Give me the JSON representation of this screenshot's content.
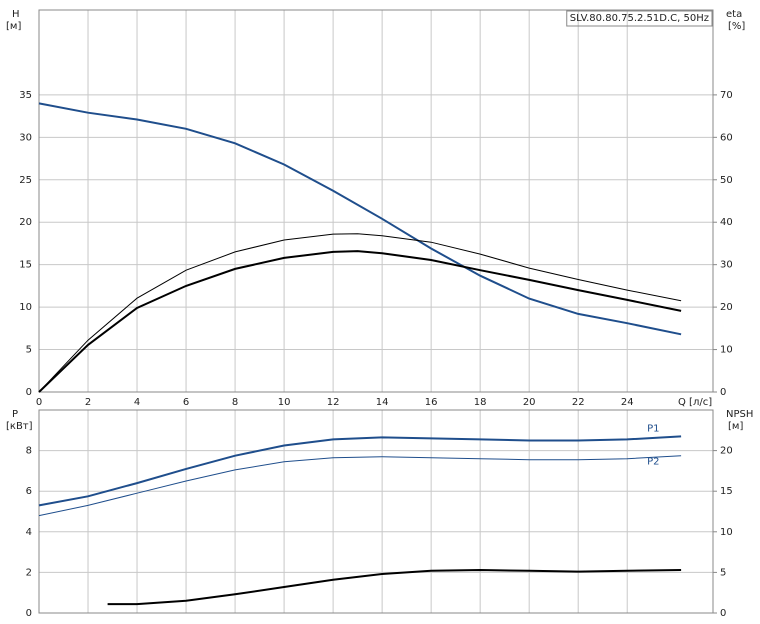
{
  "chart_data": [
    {
      "type": "line",
      "title": "SLV.80.80.75.2.51D.C, 50Hz",
      "ylabel": "H",
      "yunit": "[м]",
      "y2label": "eta",
      "y2unit": "[%]",
      "xlabel": "Q [л/с]",
      "xlim": [
        0,
        27.5
      ],
      "xticks": [
        0,
        2,
        4,
        6,
        8,
        10,
        12,
        14,
        16,
        18,
        20,
        22,
        24
      ],
      "ylim": [
        0,
        45
      ],
      "yticks": [
        0,
        5,
        10,
        15,
        20,
        25,
        30,
        35
      ],
      "y2lim": [
        0,
        90
      ],
      "y2ticks": [
        0,
        10,
        20,
        30,
        40,
        50,
        60,
        70
      ],
      "grid": true,
      "series": [
        {
          "color": "#1f4e8c",
          "width": 2,
          "x": [
            0,
            2,
            4,
            6,
            8,
            10,
            12,
            14,
            16,
            18,
            20,
            22,
            24,
            26.2
          ],
          "values": [
            34,
            32.9,
            32.1,
            31,
            29.3,
            26.8,
            23.7,
            20.4,
            16.9,
            13.7,
            11,
            9.2,
            8.1,
            6.8
          ]
        },
        {
          "color": "#000000",
          "width": 1,
          "axis": "y2",
          "x": [
            0,
            2,
            4,
            6,
            8,
            10,
            12,
            13,
            14,
            16,
            18,
            20,
            22,
            24,
            26.2
          ],
          "values": [
            0,
            12.2,
            22.1,
            28.7,
            33,
            35.8,
            37.2,
            37.3,
            36.8,
            35.3,
            32.5,
            29.2,
            26.5,
            24,
            21.5
          ]
        },
        {
          "color": "#000000",
          "width": 2,
          "axis": "y2",
          "x": [
            0,
            2,
            4,
            6,
            8,
            10,
            12,
            13,
            14,
            16,
            18,
            20,
            22,
            24,
            26.2
          ],
          "values": [
            0,
            11.1,
            19.8,
            25,
            29,
            31.6,
            33,
            33.2,
            32.7,
            31.1,
            28.7,
            26.4,
            24,
            21.7,
            19.1
          ]
        }
      ]
    },
    {
      "type": "line",
      "ylabel": "P",
      "yunit": "[кВт]",
      "y2label": "NPSH",
      "y2unit": "[м]",
      "xlim": [
        0,
        27.5
      ],
      "xticks": [
        0,
        2,
        4,
        6,
        8,
        10,
        12,
        14,
        16,
        18,
        20,
        22,
        24
      ],
      "ylim": [
        0,
        10
      ],
      "yticks": [
        0,
        2,
        4,
        6,
        8
      ],
      "y2lim": [
        0,
        25
      ],
      "y2ticks": [
        0,
        5,
        10,
        15,
        20
      ],
      "grid": true,
      "series": [
        {
          "name": "P1",
          "color": "#1f4e8c",
          "width": 2,
          "x": [
            0,
            2,
            4,
            6,
            8,
            10,
            12,
            14,
            16,
            18,
            20,
            22,
            24,
            26.2
          ],
          "values": [
            5.3,
            5.75,
            6.4,
            7.1,
            7.75,
            8.25,
            8.55,
            8.65,
            8.6,
            8.55,
            8.5,
            8.5,
            8.55,
            8.7
          ]
        },
        {
          "name": "P2",
          "color": "#1f4e8c",
          "width": 1,
          "x": [
            0,
            2,
            4,
            6,
            8,
            10,
            12,
            14,
            16,
            18,
            20,
            22,
            24,
            26.2
          ],
          "values": [
            4.8,
            5.3,
            5.9,
            6.5,
            7.05,
            7.45,
            7.65,
            7.7,
            7.65,
            7.6,
            7.55,
            7.55,
            7.6,
            7.75
          ]
        },
        {
          "color": "#000000",
          "width": 2,
          "axis": "y2",
          "x": [
            2.8,
            4,
            6,
            8,
            10,
            12,
            14,
            16,
            18,
            20,
            22,
            24,
            26.2
          ],
          "values": [
            1.1,
            1.1,
            1.5,
            2.3,
            3.2,
            4.1,
            4.8,
            5.2,
            5.3,
            5.2,
            5.1,
            5.2,
            5.3
          ]
        }
      ]
    }
  ]
}
